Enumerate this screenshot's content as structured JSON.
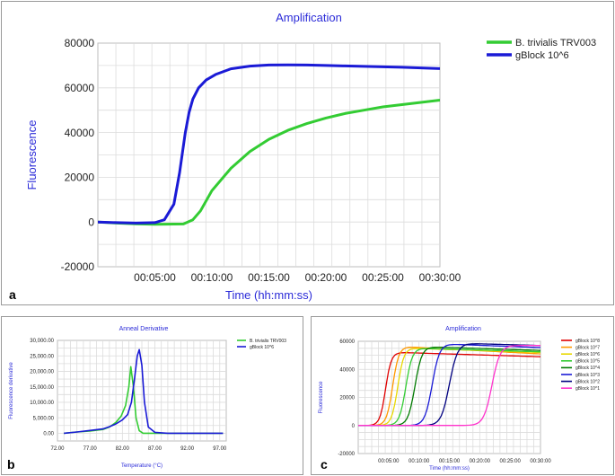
{
  "panel_labels": {
    "a": "a",
    "b": "b",
    "c": "c"
  },
  "chart_data": [
    {
      "type": "line",
      "title": "Amplification",
      "xlabel": "Time (hh:mm:ss)",
      "ylabel": "Fluorescence",
      "x_unit": "seconds",
      "xlim": [
        0,
        1800
      ],
      "ylim": [
        -20000,
        80000
      ],
      "xticks": [
        300,
        600,
        900,
        1200,
        1500,
        1800
      ],
      "xtick_labels": [
        "00:05:00",
        "00:10:00",
        "00:15:00",
        "00:20:00",
        "00:25:00",
        "00:30:00"
      ],
      "yticks": [
        -20000,
        0,
        20000,
        40000,
        60000,
        80000
      ],
      "ytick_labels": [
        "-20000",
        "0",
        "20000",
        "40000",
        "60000",
        "80000"
      ],
      "grid": true,
      "legend": "top-right",
      "series": [
        {
          "name": "B. trivialis TRV003",
          "color": "#33cc33",
          "x": [
            0,
            100,
            200,
            300,
            450,
            500,
            540,
            600,
            700,
            800,
            900,
            1000,
            1100,
            1200,
            1300,
            1400,
            1500,
            1600,
            1700,
            1800
          ],
          "y": [
            0,
            -500,
            -800,
            -1000,
            -900,
            1000,
            5000,
            14000,
            24000,
            31500,
            37000,
            41000,
            44000,
            46500,
            48500,
            50000,
            51500,
            52500,
            53500,
            54500
          ]
        },
        {
          "name": "gBlock 10^6",
          "color": "#1a1ad6",
          "x": [
            0,
            100,
            200,
            300,
            350,
            400,
            430,
            460,
            480,
            500,
            530,
            570,
            620,
            700,
            800,
            900,
            1000,
            1100,
            1200,
            1300,
            1400,
            1500,
            1600,
            1700,
            1800
          ],
          "y": [
            0,
            -300,
            -500,
            -300,
            1000,
            8000,
            22000,
            40000,
            49000,
            55000,
            60000,
            63500,
            66000,
            68500,
            69700,
            70200,
            70300,
            70200,
            70000,
            69800,
            69600,
            69400,
            69200,
            68900,
            68600
          ]
        }
      ]
    },
    {
      "type": "line",
      "title": "Anneal Derivative",
      "xlabel": "Temperature (°C)",
      "ylabel": "Fluorescence derivative",
      "xlim": [
        72,
        98
      ],
      "ylim": [
        -2500,
        30000
      ],
      "xticks": [
        72,
        77,
        82,
        87,
        92,
        97
      ],
      "xtick_labels": [
        "72.00",
        "77.00",
        "82.00",
        "87.00",
        "92.00",
        "97.00"
      ],
      "yticks": [
        0,
        5000,
        10000,
        15000,
        20000,
        25000,
        30000
      ],
      "ytick_labels": [
        "0.00",
        "5,000.00",
        "10,000.00",
        "15,000.00",
        "20,000.00",
        "25,000.00",
        "30,000.00"
      ],
      "grid": true,
      "legend": "top-right",
      "series": [
        {
          "name": "B. trivialis TRV003",
          "color": "#33cc33",
          "x": [
            73,
            75,
            77,
            79,
            80,
            81,
            81.8,
            82.5,
            83,
            83.3,
            83.7,
            84.1,
            84.6,
            85.2,
            86,
            88,
            90,
            93,
            95,
            97.5
          ],
          "y": [
            0,
            400,
            700,
            1200,
            2000,
            3500,
            5500,
            9000,
            15000,
            21500,
            15000,
            5000,
            800,
            0,
            0,
            0,
            0,
            0,
            0,
            0
          ]
        },
        {
          "name": "gBlock 10^6",
          "color": "#1a1ad6",
          "x": [
            73,
            75,
            77,
            79,
            80,
            81,
            82,
            82.8,
            83.4,
            83.9,
            84.3,
            84.6,
            85,
            85.4,
            86,
            87,
            89,
            91,
            93,
            95,
            97.5
          ],
          "y": [
            0,
            400,
            900,
            1400,
            2100,
            3000,
            4300,
            6000,
            10000,
            18000,
            25000,
            27000,
            22000,
            10000,
            2000,
            300,
            0,
            0,
            0,
            0,
            0
          ]
        }
      ]
    },
    {
      "type": "line",
      "title": "Amplification",
      "xlabel": "Time (hh:mm:ss)",
      "ylabel": "Fluorescence",
      "x_unit": "seconds",
      "xlim": [
        0,
        1800
      ],
      "ylim": [
        -20000,
        60000
      ],
      "xticks": [
        300,
        600,
        900,
        1200,
        1500,
        1800
      ],
      "xtick_labels": [
        "00:05:00",
        "00:10:00",
        "00:15:00",
        "00:20:00",
        "00:25:00",
        "00:30:00"
      ],
      "yticks": [
        -20000,
        0,
        20000,
        40000,
        60000
      ],
      "ytick_labels": [
        "-20000",
        "0",
        "20000",
        "40000",
        "60000"
      ],
      "grid": true,
      "legend": "top-right",
      "series": [
        {
          "name": "gBlock 10^8",
          "color": "#e00000",
          "threshold": 270,
          "rate": 28,
          "plateau": 52000,
          "end": 49000
        },
        {
          "name": "gBlock 10^7",
          "color": "#ff9900",
          "threshold": 340,
          "rate": 30,
          "plateau": 56000,
          "end": 51000
        },
        {
          "name": "gBlock 10^6",
          "color": "#e8d800",
          "threshold": 390,
          "rate": 30,
          "plateau": 55000,
          "end": 52000
        },
        {
          "name": "gBlock 10^5",
          "color": "#33cc33",
          "threshold": 470,
          "rate": 32,
          "plateau": 55000,
          "end": 52500
        },
        {
          "name": "gBlock 10^4",
          "color": "#007a00",
          "threshold": 560,
          "rate": 34,
          "plateau": 56000,
          "end": 53500
        },
        {
          "name": "gBlock 10^3",
          "color": "#1a1ad6",
          "threshold": 730,
          "rate": 36,
          "plateau": 58000,
          "end": 55500
        },
        {
          "name": "gBlock 10^2",
          "color": "#000080",
          "threshold": 900,
          "rate": 40,
          "plateau": 58500,
          "end": 57000
        },
        {
          "name": "gBlock 10^1",
          "color": "#ff33cc",
          "threshold": 1320,
          "rate": 40,
          "plateau": 57000,
          "end": 57000
        }
      ]
    }
  ]
}
